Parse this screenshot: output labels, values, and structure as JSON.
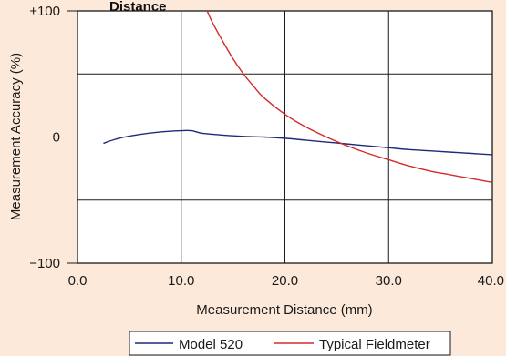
{
  "chart_data": {
    "type": "line",
    "title": "Distance",
    "xlabel": "Measurement Distance (mm)",
    "ylabel": "Measurement Accuracy (%)",
    "xlim": [
      0,
      40
    ],
    "ylim": [
      -100,
      100
    ],
    "x_ticks": [
      "0.0",
      "10.0",
      "20.0",
      "30.0",
      "40.0"
    ],
    "y_ticks": [
      "+100",
      "0",
      "−100"
    ],
    "grid": true,
    "legend_position": "bottom",
    "series": [
      {
        "name": "Model 520",
        "color": "#1f2a7a",
        "x": [
          2.5,
          4,
          6,
          8,
          10,
          11,
          12,
          14,
          16,
          18,
          20,
          22,
          24,
          26,
          28,
          30,
          32,
          34,
          36,
          38,
          40
        ],
        "y": [
          -5,
          -1,
          2,
          4,
          5,
          5,
          3,
          1.5,
          0.5,
          0,
          -1,
          -2.5,
          -4,
          -5.5,
          -7,
          -8.5,
          -10,
          -11,
          -12,
          -13,
          -14
        ]
      },
      {
        "name": "Typical Fieldmeter",
        "color": "#d42b2b",
        "x": [
          12.5,
          13,
          14,
          15,
          16,
          17,
          18,
          20,
          22,
          24,
          26,
          28,
          30,
          32,
          34,
          36,
          38,
          40
        ],
        "y": [
          100,
          91,
          76,
          62,
          50,
          40,
          31,
          18,
          8,
          0,
          -7,
          -13,
          -18,
          -23,
          -27,
          -30,
          -33,
          -36
        ]
      }
    ]
  }
}
